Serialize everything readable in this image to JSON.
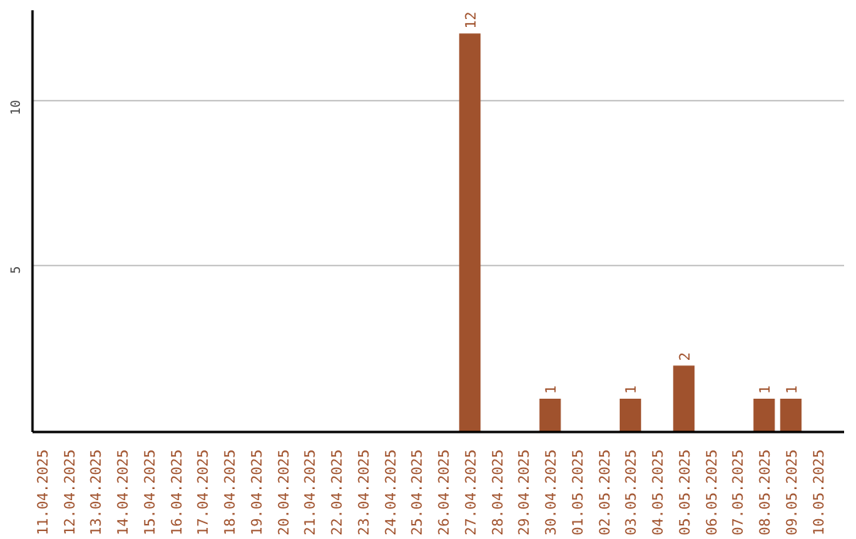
{
  "chart_data": {
    "type": "bar",
    "categories": [
      "11.04.2025",
      "12.04.2025",
      "13.04.2025",
      "14.04.2025",
      "15.04.2025",
      "16.04.2025",
      "17.04.2025",
      "18.04.2025",
      "19.04.2025",
      "20.04.2025",
      "21.04.2025",
      "22.04.2025",
      "23.04.2025",
      "24.04.2025",
      "25.04.2025",
      "26.04.2025",
      "27.04.2025",
      "28.04.2025",
      "29.04.2025",
      "30.04.2025",
      "01.05.2025",
      "02.05.2025",
      "03.05.2025",
      "04.05.2025",
      "05.05.2025",
      "06.05.2025",
      "07.05.2025",
      "08.05.2025",
      "09.05.2025",
      "10.05.2025"
    ],
    "values": [
      0,
      0,
      0,
      0,
      0,
      0,
      0,
      0,
      0,
      0,
      0,
      0,
      0,
      0,
      0,
      0,
      12,
      0,
      0,
      1,
      0,
      0,
      1,
      0,
      2,
      0,
      0,
      1,
      1,
      0
    ],
    "value_labels": [
      null,
      null,
      null,
      null,
      null,
      null,
      null,
      null,
      null,
      null,
      null,
      null,
      null,
      null,
      null,
      null,
      "12",
      null,
      null,
      "1",
      null,
      null,
      "1",
      null,
      "2",
      null,
      null,
      "1",
      "1",
      null
    ],
    "color": "#a0522d",
    "ylim": [
      0,
      12.7
    ],
    "yticks": [
      5,
      10
    ],
    "grid": "y"
  }
}
